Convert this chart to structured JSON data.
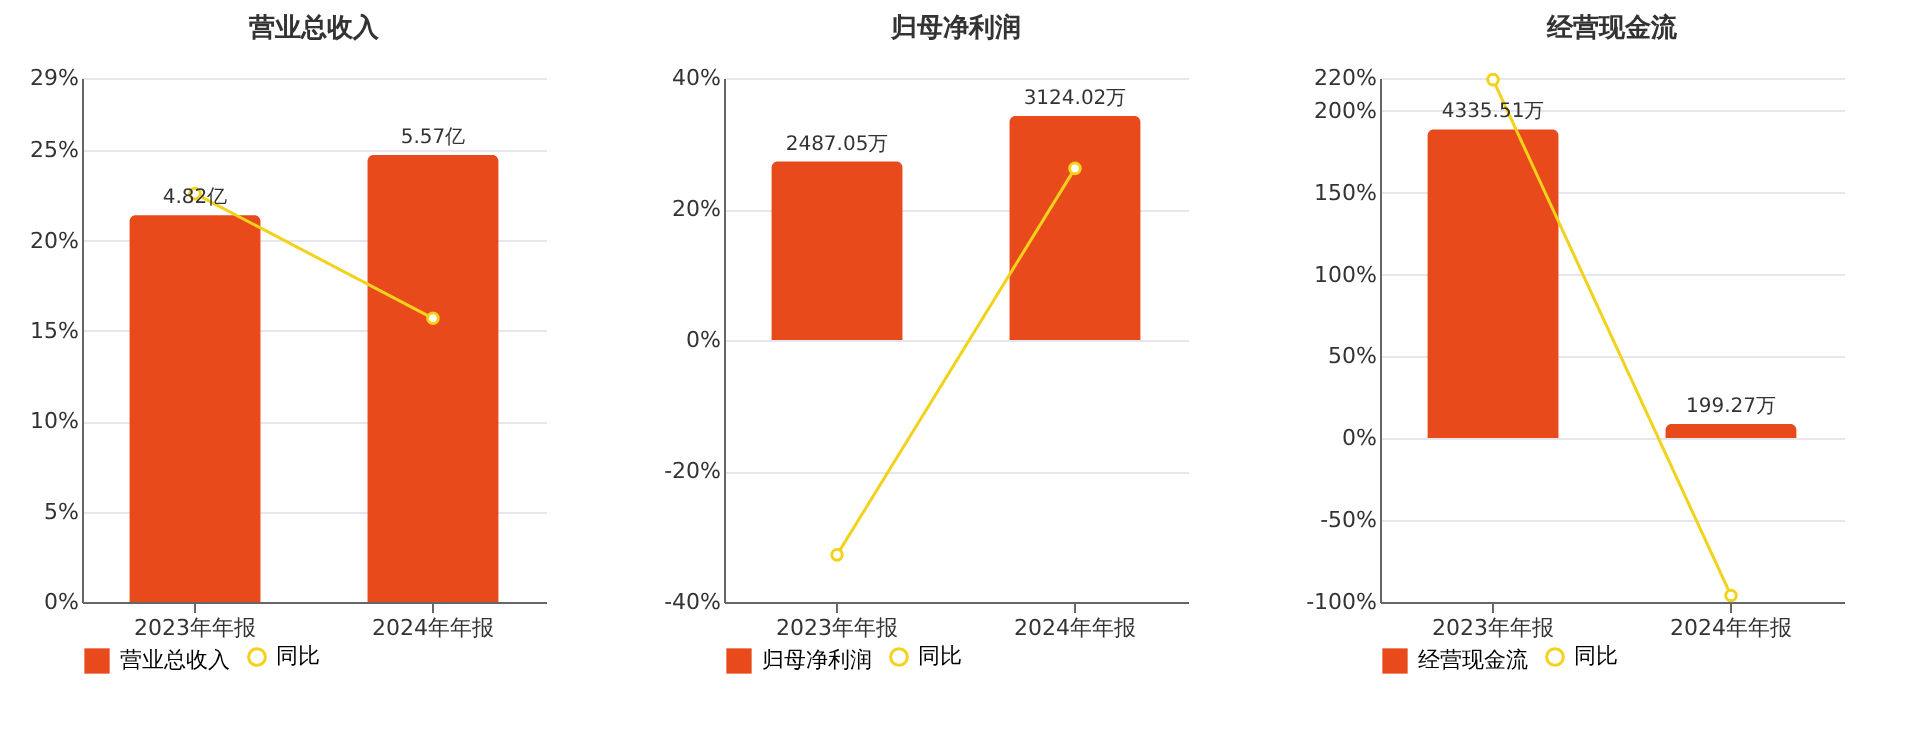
{
  "chart_data": [
    {
      "type": "bar",
      "title": "营业总收入",
      "categories": [
        "2023年年报",
        "2024年年报"
      ],
      "legend": "bottom",
      "grid": "y",
      "series": [
        {
          "name": "营业总收入",
          "axis": "y2",
          "color": "#e84a1c",
          "values": [
            4.82,
            5.57
          ],
          "value_labels": [
            "4.82亿",
            "5.57亿"
          ]
        },
        {
          "name": "同比",
          "type": "line",
          "color": "#f2d21b",
          "marker": "circle",
          "values": [
            22.6,
            15.7
          ]
        }
      ],
      "ylim": [
        0,
        29
      ],
      "yticks": [
        {
          "value": 0,
          "label": "0%"
        },
        {
          "value": 5,
          "label": "5%"
        },
        {
          "value": 10,
          "label": "10%"
        },
        {
          "value": 15,
          "label": "15%"
        },
        {
          "value": 20,
          "label": "20%"
        },
        {
          "value": 25,
          "label": "25%"
        },
        {
          "value": 29,
          "label": "29%"
        }
      ],
      "y2lim": [
        0,
        6.53
      ]
    },
    {
      "type": "bar",
      "title": "归母净利润",
      "categories": [
        "2023年年报",
        "2024年年报"
      ],
      "legend": "bottom",
      "grid": "y",
      "series": [
        {
          "name": "归母净利润",
          "axis": "y2",
          "color": "#e84a1c",
          "values": [
            2487.05,
            3124.02
          ],
          "value_labels": [
            "2487.05万",
            "3124.02万"
          ]
        },
        {
          "name": "同比",
          "type": "line",
          "color": "#f2d21b",
          "marker": "circle",
          "values": [
            -32.8,
            26.2
          ]
        }
      ],
      "ylim": [
        -40,
        40
      ],
      "yticks": [
        {
          "value": -40,
          "label": "-40%"
        },
        {
          "value": -20,
          "label": "-20%"
        },
        {
          "value": 0,
          "label": "0%"
        },
        {
          "value": 20,
          "label": "20%"
        },
        {
          "value": 40,
          "label": "40%"
        }
      ],
      "y2lim": [
        -3653,
        3653
      ]
    },
    {
      "type": "bar",
      "title": "经营现金流",
      "categories": [
        "2023年年报",
        "2024年年报"
      ],
      "legend": "bottom",
      "grid": "y",
      "series": [
        {
          "name": "经营现金流",
          "axis": "y2",
          "color": "#e84a1c",
          "values": [
            4335.51,
            199.27
          ],
          "value_labels": [
            "4335.51万",
            "199.27万"
          ]
        },
        {
          "name": "同比",
          "type": "line",
          "color": "#f2d21b",
          "marker": "circle",
          "values": [
            219,
            -96
          ]
        }
      ],
      "ylim": [
        -100,
        220
      ],
      "yticks": [
        {
          "value": -100,
          "label": "-100%"
        },
        {
          "value": -50,
          "label": "-50%"
        },
        {
          "value": 0,
          "label": "0%"
        },
        {
          "value": 50,
          "label": "50%"
        },
        {
          "value": 100,
          "label": "100%"
        },
        {
          "value": 150,
          "label": "150%"
        },
        {
          "value": 200,
          "label": "200%"
        },
        {
          "value": 220,
          "label": "220%"
        }
      ],
      "y2lim": [
        -2302,
        5058
      ]
    }
  ]
}
